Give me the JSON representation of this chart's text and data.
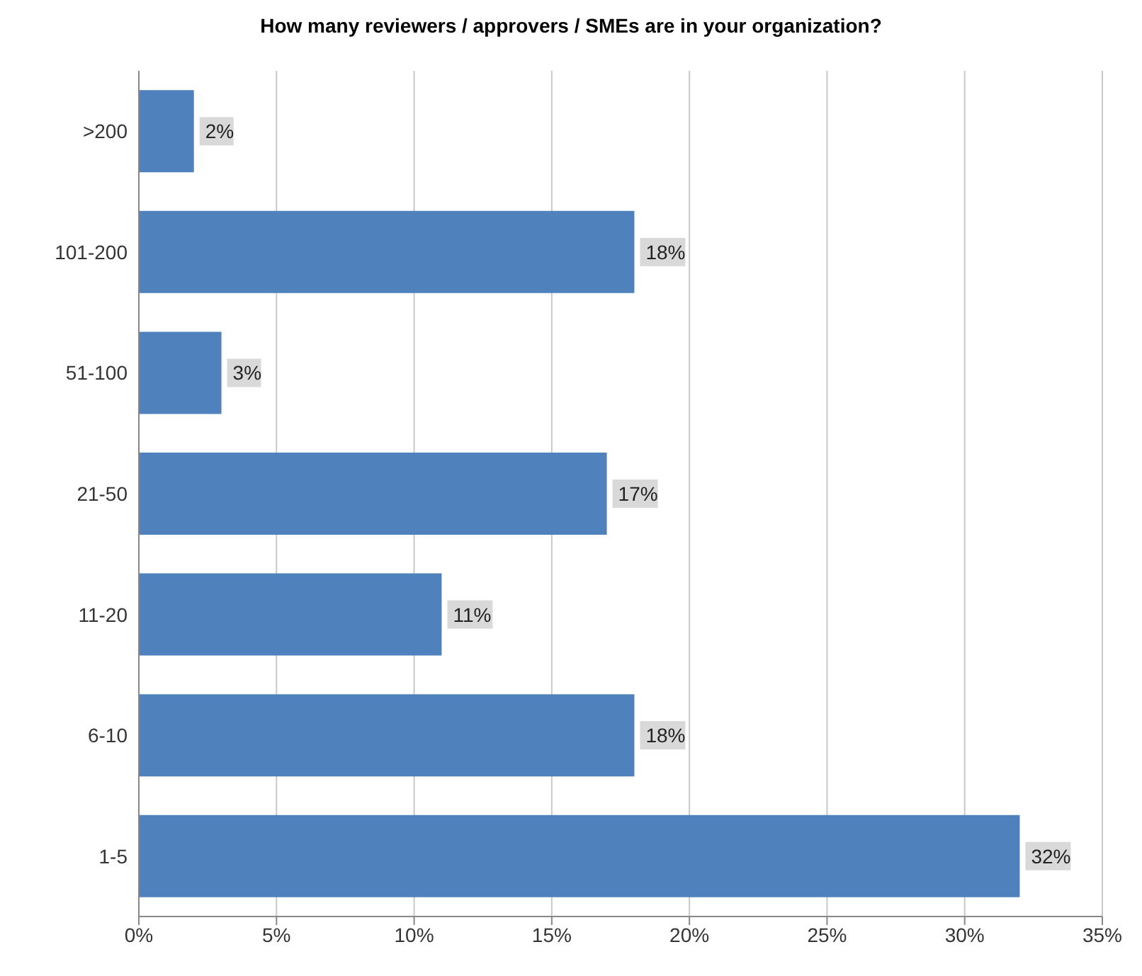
{
  "chart_data": {
    "type": "bar",
    "orientation": "horizontal",
    "title": "How many reviewers / approvers / SMEs are in your organization?",
    "categories": [
      ">200",
      "101-200",
      "51-100",
      "21-50",
      "11-20",
      "6-10",
      "1-5"
    ],
    "values": [
      2,
      18,
      3,
      17,
      11,
      18,
      32
    ],
    "color": "#4f81bd",
    "xlim": [
      0,
      35
    ],
    "xticks": [
      {
        "value": 0,
        "label": "0%"
      },
      {
        "value": 5,
        "label": "5%"
      },
      {
        "value": 10,
        "label": "10%"
      },
      {
        "value": 15,
        "label": "15%"
      },
      {
        "value": 20,
        "label": "20%"
      },
      {
        "value": 25,
        "label": "25%"
      },
      {
        "value": 30,
        "label": "30%"
      },
      {
        "value": 35,
        "label": "35%"
      }
    ],
    "value_labels": [
      "2%",
      "18%",
      "3%",
      "17%",
      "11%",
      "18%",
      "32%"
    ],
    "grid": "x"
  }
}
